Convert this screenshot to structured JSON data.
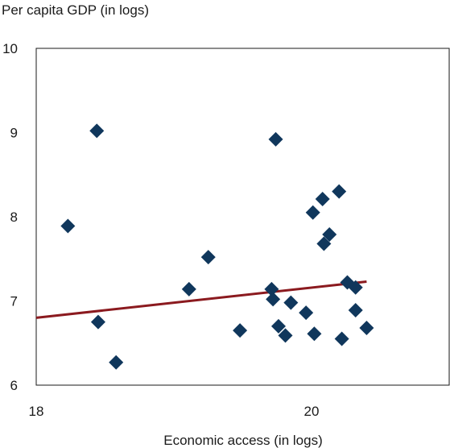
{
  "chart_data": {
    "type": "scatter",
    "ylabel": "Per capita GDP (in logs)",
    "xlabel": "Economic access (in logs)",
    "xlim": [
      18,
      21
    ],
    "ylim": [
      6,
      10
    ],
    "x_ticks": [
      18,
      20
    ],
    "y_ticks": [
      6,
      7,
      8,
      9,
      10
    ],
    "grid": false,
    "legend": "none",
    "marker_color": "#10375C",
    "trend_color": "#8B1A1F",
    "series": [
      {
        "marker": "diamond",
        "points": [
          {
            "x": 18.23,
            "y": 7.89
          },
          {
            "x": 18.44,
            "y": 9.02
          },
          {
            "x": 18.45,
            "y": 6.75
          },
          {
            "x": 18.58,
            "y": 6.27
          },
          {
            "x": 19.11,
            "y": 7.14
          },
          {
            "x": 19.25,
            "y": 7.52
          },
          {
            "x": 19.48,
            "y": 6.65
          },
          {
            "x": 19.71,
            "y": 7.14
          },
          {
            "x": 19.72,
            "y": 7.02
          },
          {
            "x": 19.74,
            "y": 8.92
          },
          {
            "x": 19.76,
            "y": 6.7
          },
          {
            "x": 19.81,
            "y": 6.59
          },
          {
            "x": 19.85,
            "y": 6.98
          },
          {
            "x": 19.96,
            "y": 6.86
          },
          {
            "x": 20.01,
            "y": 8.05
          },
          {
            "x": 20.02,
            "y": 6.61
          },
          {
            "x": 20.08,
            "y": 8.21
          },
          {
            "x": 20.09,
            "y": 7.68
          },
          {
            "x": 20.13,
            "y": 7.79
          },
          {
            "x": 20.2,
            "y": 8.3
          },
          {
            "x": 20.22,
            "y": 6.55
          },
          {
            "x": 20.26,
            "y": 7.22
          },
          {
            "x": 20.32,
            "y": 7.16
          },
          {
            "x": 20.32,
            "y": 6.89
          },
          {
            "x": 20.4,
            "y": 6.68
          }
        ]
      }
    ],
    "trendline": {
      "x": [
        18,
        20.4
      ],
      "y": [
        6.8,
        7.23
      ]
    }
  }
}
